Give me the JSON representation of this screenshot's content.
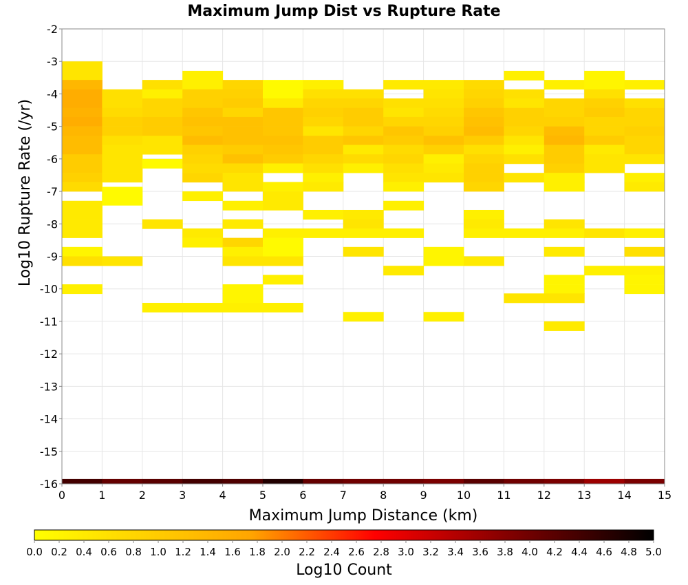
{
  "chart_data": {
    "type": "heatmap",
    "title": "Maximum Jump Dist vs Rupture Rate",
    "xlabel": "Maximum Jump Distance (km)",
    "ylabel": "Log10 Rupture Rate (/yr)",
    "xlim": [
      0,
      15
    ],
    "ylim": [
      -16,
      -2
    ],
    "x_ticks": [
      "0",
      "1",
      "2",
      "3",
      "4",
      "5",
      "6",
      "7",
      "8",
      "9",
      "10",
      "11",
      "12",
      "13",
      "14",
      "15"
    ],
    "y_ticks": [
      "-2",
      "-3",
      "-4",
      "-5",
      "-6",
      "-7",
      "-8",
      "-9",
      "-10",
      "-11",
      "-12",
      "-13",
      "-14",
      "-15",
      "-16"
    ],
    "grid": true,
    "x_bin_width": 1,
    "y_bin_height": 0.2857,
    "colorbar": {
      "label": "Log10 Count",
      "min": 0.0,
      "max": 5.0,
      "ticks": [
        "0.0",
        "0.2",
        "0.4",
        "0.6",
        "0.8",
        "1.0",
        "1.2",
        "1.4",
        "1.6",
        "1.8",
        "2.0",
        "2.2",
        "2.4",
        "2.6",
        "2.8",
        "3.0",
        "3.2",
        "3.4",
        "3.6",
        "3.8",
        "4.0",
        "4.2",
        "4.4",
        "4.6",
        "4.8",
        "5.0"
      ],
      "colors": [
        "#ffff00",
        "#ffa500",
        "#ff0000",
        "#000000"
      ]
    },
    "cells": [
      [
        0,
        -3.0,
        0.5
      ],
      [
        0,
        -3.29,
        0.5
      ],
      [
        0,
        -3.57,
        1.4
      ],
      [
        0,
        -3.86,
        1.6
      ],
      [
        0,
        -4.14,
        1.6
      ],
      [
        0,
        -4.43,
        1.5
      ],
      [
        0,
        -4.71,
        1.6
      ],
      [
        0,
        -5.0,
        1.4
      ],
      [
        0,
        -5.29,
        1.3
      ],
      [
        0,
        -5.57,
        1.3
      ],
      [
        0,
        -5.86,
        1.0
      ],
      [
        0,
        -6.14,
        1.0
      ],
      [
        0,
        -6.43,
        0.9
      ],
      [
        0,
        -6.71,
        0.7
      ],
      [
        0,
        -7.29,
        0.4
      ],
      [
        0,
        -7.57,
        0.4
      ],
      [
        0,
        -7.86,
        0.4
      ],
      [
        0,
        -8.14,
        0.4
      ],
      [
        0,
        -8.71,
        0.2
      ],
      [
        0,
        -9.0,
        0.6
      ],
      [
        0,
        -9.86,
        0.3
      ],
      [
        1,
        -3.86,
        0.6
      ],
      [
        1,
        -4.14,
        0.6
      ],
      [
        1,
        -4.43,
        0.7
      ],
      [
        1,
        -4.71,
        0.9
      ],
      [
        1,
        -5.0,
        0.9
      ],
      [
        1,
        -5.29,
        0.6
      ],
      [
        1,
        -5.57,
        0.5
      ],
      [
        1,
        -5.86,
        0.5
      ],
      [
        1,
        -6.14,
        0.5
      ],
      [
        1,
        -6.43,
        0.5
      ],
      [
        1,
        -6.86,
        0.1
      ],
      [
        1,
        -7.14,
        0.1
      ],
      [
        1,
        -9.0,
        0.5
      ],
      [
        2,
        -3.57,
        0.6
      ],
      [
        2,
        -3.86,
        0.3
      ],
      [
        2,
        -4.14,
        0.8
      ],
      [
        2,
        -4.43,
        0.8
      ],
      [
        2,
        -4.71,
        1.0
      ],
      [
        2,
        -5.0,
        1.0
      ],
      [
        2,
        -5.29,
        0.5
      ],
      [
        2,
        -5.57,
        0.5
      ],
      [
        2,
        -6.0,
        0.1
      ],
      [
        2,
        -7.86,
        0.5
      ],
      [
        2,
        -10.43,
        0.3
      ],
      [
        3,
        -3.29,
        0.3
      ],
      [
        3,
        -3.57,
        0.3
      ],
      [
        3,
        -3.86,
        0.9
      ],
      [
        3,
        -4.14,
        0.9
      ],
      [
        3,
        -4.43,
        1.1
      ],
      [
        3,
        -4.71,
        1.2
      ],
      [
        3,
        -5.0,
        1.1
      ],
      [
        3,
        -5.29,
        1.3
      ],
      [
        3,
        -5.57,
        0.9
      ],
      [
        3,
        -5.86,
        0.8
      ],
      [
        3,
        -6.14,
        0.7
      ],
      [
        3,
        -6.43,
        0.8
      ],
      [
        3,
        -7.0,
        0.3
      ],
      [
        3,
        -8.14,
        0.4
      ],
      [
        3,
        -8.43,
        0.3
      ],
      [
        3,
        -10.43,
        0.3
      ],
      [
        4,
        -3.57,
        0.8
      ],
      [
        4,
        -3.86,
        0.9
      ],
      [
        4,
        -4.14,
        1.0
      ],
      [
        4,
        -4.43,
        0.8
      ],
      [
        4,
        -4.71,
        1.2
      ],
      [
        4,
        -5.0,
        1.2
      ],
      [
        4,
        -5.29,
        1.2
      ],
      [
        4,
        -5.57,
        1.0
      ],
      [
        4,
        -5.86,
        1.2
      ],
      [
        4,
        -6.14,
        0.7
      ],
      [
        4,
        -6.43,
        0.5
      ],
      [
        4,
        -6.71,
        0.5
      ],
      [
        4,
        -7.29,
        0.3
      ],
      [
        4,
        -7.86,
        0.4
      ],
      [
        4,
        -8.43,
        0.8
      ],
      [
        4,
        -8.71,
        0.3
      ],
      [
        4,
        -9.0,
        0.5
      ],
      [
        4,
        -9.86,
        0.2
      ],
      [
        4,
        -10.14,
        0.2
      ],
      [
        4,
        -10.43,
        0.3
      ],
      [
        5,
        -3.57,
        0.1
      ],
      [
        5,
        -3.86,
        0.1
      ],
      [
        5,
        -4.14,
        0.4
      ],
      [
        5,
        -4.43,
        1.1
      ],
      [
        5,
        -4.71,
        1.1
      ],
      [
        5,
        -5.0,
        1.1
      ],
      [
        5,
        -5.29,
        1.2
      ],
      [
        5,
        -5.57,
        1.1
      ],
      [
        5,
        -5.86,
        1.0
      ],
      [
        5,
        -6.14,
        0.3
      ],
      [
        5,
        -6.71,
        0.3
      ],
      [
        5,
        -7.0,
        0.4
      ],
      [
        5,
        -7.29,
        0.4
      ],
      [
        5,
        -8.14,
        0.3
      ],
      [
        5,
        -8.43,
        0.1
      ],
      [
        5,
        -8.71,
        0.1
      ],
      [
        5,
        -9.0,
        0.5
      ],
      [
        5,
        -9.57,
        0.3
      ],
      [
        5,
        -10.43,
        0.3
      ],
      [
        6,
        -3.57,
        0.3
      ],
      [
        6,
        -3.86,
        0.6
      ],
      [
        6,
        -4.14,
        0.8
      ],
      [
        6,
        -4.43,
        0.9
      ],
      [
        6,
        -4.71,
        0.8
      ],
      [
        6,
        -5.0,
        0.5
      ],
      [
        6,
        -5.29,
        1.0
      ],
      [
        6,
        -5.57,
        1.0
      ],
      [
        6,
        -5.86,
        0.8
      ],
      [
        6,
        -6.14,
        0.6
      ],
      [
        6,
        -6.43,
        0.3
      ],
      [
        6,
        -6.71,
        0.4
      ],
      [
        6,
        -7.57,
        0.3
      ],
      [
        6,
        -8.14,
        0.3
      ],
      [
        7,
        -3.86,
        0.6
      ],
      [
        7,
        -4.14,
        0.8
      ],
      [
        7,
        -4.43,
        1.0
      ],
      [
        7,
        -4.71,
        1.0
      ],
      [
        7,
        -5.0,
        0.8
      ],
      [
        7,
        -5.29,
        1.1
      ],
      [
        7,
        -5.57,
        0.4
      ],
      [
        7,
        -5.86,
        0.7
      ],
      [
        7,
        -6.14,
        0.3
      ],
      [
        7,
        -7.57,
        0.4
      ],
      [
        7,
        -7.86,
        0.5
      ],
      [
        7,
        -8.14,
        0.3
      ],
      [
        7,
        -8.71,
        0.5
      ],
      [
        7,
        -10.71,
        0.3
      ],
      [
        8,
        -3.57,
        0.4
      ],
      [
        8,
        -4.14,
        0.6
      ],
      [
        8,
        -4.43,
        0.5
      ],
      [
        8,
        -4.71,
        0.8
      ],
      [
        8,
        -5.0,
        1.1
      ],
      [
        8,
        -5.29,
        1.0
      ],
      [
        8,
        -5.57,
        0.7
      ],
      [
        8,
        -5.86,
        0.8
      ],
      [
        8,
        -6.14,
        0.6
      ],
      [
        8,
        -6.43,
        0.5
      ],
      [
        8,
        -6.71,
        0.3
      ],
      [
        8,
        -7.29,
        0.3
      ],
      [
        8,
        -8.14,
        0.3
      ],
      [
        8,
        -9.29,
        0.4
      ],
      [
        9,
        -3.57,
        0.4
      ],
      [
        9,
        -3.86,
        0.5
      ],
      [
        9,
        -4.14,
        0.6
      ],
      [
        9,
        -4.43,
        0.7
      ],
      [
        9,
        -4.71,
        0.8
      ],
      [
        9,
        -5.0,
        0.9
      ],
      [
        9,
        -5.29,
        1.2
      ],
      [
        9,
        -5.57,
        0.9
      ],
      [
        9,
        -5.86,
        0.3
      ],
      [
        9,
        -6.14,
        0.4
      ],
      [
        9,
        -6.43,
        0.5
      ],
      [
        9,
        -8.71,
        0.2
      ],
      [
        9,
        -9.0,
        0.2
      ],
      [
        9,
        -10.71,
        0.3
      ],
      [
        10,
        -3.57,
        0.7
      ],
      [
        10,
        -3.86,
        0.8
      ],
      [
        10,
        -4.14,
        0.9
      ],
      [
        10,
        -4.43,
        1.1
      ],
      [
        10,
        -4.71,
        1.2
      ],
      [
        10,
        -5.0,
        1.3
      ],
      [
        10,
        -5.29,
        1.0
      ],
      [
        10,
        -5.57,
        0.6
      ],
      [
        10,
        -5.86,
        0.8
      ],
      [
        10,
        -6.14,
        0.9
      ],
      [
        10,
        -6.43,
        0.9
      ],
      [
        10,
        -6.71,
        0.8
      ],
      [
        10,
        -7.57,
        0.3
      ],
      [
        10,
        -7.86,
        0.4
      ],
      [
        10,
        -8.14,
        0.3
      ],
      [
        10,
        -9.0,
        0.4
      ],
      [
        11,
        -3.29,
        0.3
      ],
      [
        11,
        -3.86,
        0.6
      ],
      [
        11,
        -4.14,
        0.5
      ],
      [
        11,
        -4.43,
        0.9
      ],
      [
        11,
        -4.71,
        0.9
      ],
      [
        11,
        -5.0,
        0.8
      ],
      [
        11,
        -5.29,
        0.5
      ],
      [
        11,
        -5.57,
        0.3
      ],
      [
        11,
        -5.86,
        0.6
      ],
      [
        11,
        -6.43,
        0.5
      ],
      [
        11,
        -8.14,
        0.3
      ],
      [
        11,
        -10.14,
        0.5
      ],
      [
        12,
        -3.57,
        0.3
      ],
      [
        12,
        -4.14,
        0.8
      ],
      [
        12,
        -4.43,
        0.8
      ],
      [
        12,
        -4.71,
        0.9
      ],
      [
        12,
        -5.0,
        1.3
      ],
      [
        12,
        -5.29,
        1.4
      ],
      [
        12,
        -5.57,
        1.0
      ],
      [
        12,
        -5.86,
        1.0
      ],
      [
        12,
        -6.14,
        0.9
      ],
      [
        12,
        -6.43,
        0.3
      ],
      [
        12,
        -6.71,
        0.3
      ],
      [
        12,
        -7.86,
        0.5
      ],
      [
        12,
        -8.14,
        0.3
      ],
      [
        12,
        -8.71,
        0.4
      ],
      [
        12,
        -9.57,
        0.2
      ],
      [
        12,
        -9.86,
        0.2
      ],
      [
        12,
        -10.14,
        0.5
      ],
      [
        12,
        -11.0,
        0.4
      ],
      [
        13,
        -3.29,
        0.2
      ],
      [
        13,
        -3.57,
        0.2
      ],
      [
        13,
        -3.86,
        0.6
      ],
      [
        13,
        -4.14,
        0.9
      ],
      [
        13,
        -4.43,
        1.0
      ],
      [
        13,
        -4.71,
        0.8
      ],
      [
        13,
        -5.0,
        0.8
      ],
      [
        13,
        -5.29,
        1.0
      ],
      [
        13,
        -5.57,
        0.4
      ],
      [
        13,
        -5.86,
        0.5
      ],
      [
        13,
        -6.14,
        0.5
      ],
      [
        13,
        -8.14,
        0.5
      ],
      [
        13,
        -9.29,
        0.3
      ],
      [
        14,
        -3.57,
        0.3
      ],
      [
        14,
        -4.14,
        0.6
      ],
      [
        14,
        -4.43,
        0.8
      ],
      [
        14,
        -4.71,
        0.8
      ],
      [
        14,
        -5.0,
        0.9
      ],
      [
        14,
        -5.29,
        0.8
      ],
      [
        14,
        -5.57,
        0.8
      ],
      [
        14,
        -5.86,
        0.5
      ],
      [
        14,
        -6.43,
        0.3
      ],
      [
        14,
        -6.71,
        0.4
      ],
      [
        14,
        -8.14,
        0.3
      ],
      [
        14,
        -8.71,
        0.6
      ],
      [
        14,
        -9.29,
        0.3
      ],
      [
        14,
        -9.57,
        0.2
      ],
      [
        14,
        -9.86,
        0.2
      ]
    ],
    "bottom_row": {
      "y": -16.0,
      "values": [
        4.4,
        4.1,
        4.2,
        4.4,
        4.3,
        4.7,
        4.1,
        4.0,
        4.0,
        3.9,
        4.2,
        4.0,
        3.9,
        3.6,
        3.9
      ]
    }
  }
}
